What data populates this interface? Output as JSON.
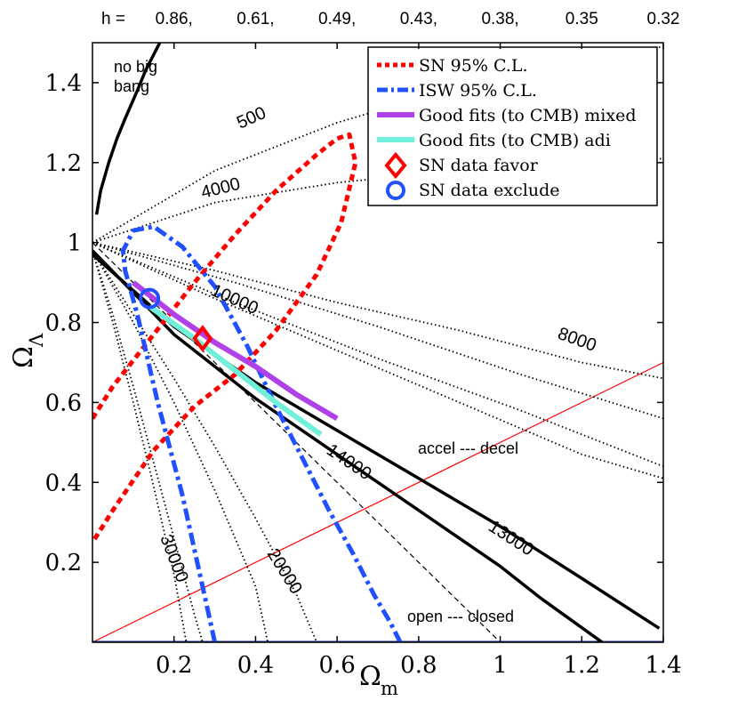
{
  "chart_data": {
    "type": "line",
    "xlabel": "Ω",
    "xlabel_sub": "m",
    "ylabel": "Ω",
    "ylabel_sub": "Λ",
    "xlim": [
      0,
      1.4
    ],
    "ylim": [
      0,
      1.5
    ],
    "xticks": [
      0.2,
      0.4,
      0.6,
      0.8,
      1,
      1.2,
      1.4
    ],
    "xtick_labels": [
      "0.2",
      "0.4",
      "0.6",
      "0.8",
      "1",
      "1.2",
      "1.4"
    ],
    "yticks": [
      0.2,
      0.4,
      0.6,
      0.8,
      1,
      1.2,
      1.4
    ],
    "ytick_labels": [
      "0.2",
      "0.4",
      "0.6",
      "0.8",
      "1",
      "1.2",
      "1.4"
    ],
    "top_axis": {
      "prefix": "h =",
      "labels": [
        "0.86,",
        "0.61,",
        "0.49,",
        "0.43,",
        "0.38,",
        "0.35",
        "0.32"
      ],
      "positions": [
        0.2,
        0.4,
        0.6,
        0.8,
        1.0,
        1.2,
        1.4
      ]
    },
    "legend": [
      {
        "label": "SN 95% C.L.",
        "color": "#ff0000",
        "style": "dotted-thick"
      },
      {
        "label": "ISW 95% C.L.",
        "color": "#2050ff",
        "style": "dashdot-thick"
      },
      {
        "label": "Good fits (to CMB) mixed",
        "color": "#b040e8",
        "style": "solid-thick"
      },
      {
        "label": "Good fits (to CMB) adi",
        "color": "#70f0d8",
        "style": "solid-thick"
      },
      {
        "label": "SN data favor",
        "color": "#ff0000",
        "style": "diamond-marker"
      },
      {
        "label": "SN data exclude",
        "color": "#2050ff",
        "style": "circle-marker"
      }
    ],
    "annotations": {
      "no_big_bang_1": "no big",
      "no_big_bang_2": "bang",
      "accel_decel": "accel --- decel",
      "open_closed": "open --- closed"
    },
    "contour_labels": [
      "500",
      "4000",
      "10000",
      "8000",
      "14000",
      "13000",
      "20000",
      "30000"
    ],
    "series": [
      {
        "name": "no big bang boundary",
        "color": "#000000",
        "style": "solid",
        "x": [
          0.01,
          0.02,
          0.04,
          0.06,
          0.08,
          0.11,
          0.13,
          0.165
        ],
        "y": [
          1.07,
          1.13,
          1.2,
          1.26,
          1.31,
          1.38,
          1.43,
          1.5
        ]
      },
      {
        "name": "accel/decel line",
        "color": "#ff0000",
        "style": "thin",
        "x": [
          0,
          1.4
        ],
        "y": [
          0,
          0.7
        ]
      },
      {
        "name": "flat universe",
        "color": "#000000",
        "style": "dashed",
        "x": [
          0,
          1
        ],
        "y": [
          1,
          0
        ]
      },
      {
        "name": "open/closed axis",
        "color": "#102080",
        "style": "thin",
        "x": [
          0,
          1.4
        ],
        "y": [
          0.002,
          0.002
        ]
      },
      {
        "name": "contour 13000",
        "color": "#000000",
        "style": "solid",
        "x": [
          0,
          0.2,
          0.4,
          0.6,
          0.8,
          1.0,
          1.2,
          1.39
        ],
        "y": [
          0.97,
          0.79,
          0.65,
          0.53,
          0.41,
          0.29,
          0.16,
          0.035
        ]
      },
      {
        "name": "contour 14000",
        "color": "#000000",
        "style": "solid",
        "x": [
          0,
          0.2,
          0.4,
          0.6,
          0.8,
          1.0,
          1.1,
          1.25
        ],
        "y": [
          0.98,
          0.77,
          0.61,
          0.47,
          0.33,
          0.19,
          0.11,
          0.0
        ]
      },
      {
        "name": "contour 8000",
        "color": "#000000",
        "style": "dotted",
        "x": [
          0,
          0.35,
          0.7,
          1.05,
          1.4
        ],
        "y": [
          1.0,
          0.9,
          0.79,
          0.67,
          0.56
        ]
      },
      {
        "name": "contour 8000 lower",
        "color": "#000000",
        "style": "dotted",
        "x": [
          0,
          0.35,
          0.7,
          1.05,
          1.4
        ],
        "y": [
          1.0,
          0.85,
          0.71,
          0.58,
          0.44
        ]
      },
      {
        "name": "contour 500",
        "color": "#000000",
        "style": "dotted",
        "x": [
          0,
          0.3,
          0.6,
          0.9,
          1.2,
          1.4
        ],
        "y": [
          1.0,
          1.18,
          1.3,
          1.39,
          1.46,
          1.49
        ]
      },
      {
        "name": "contour 4000",
        "color": "#000000",
        "style": "dotted",
        "x": [
          0,
          0.3,
          0.6,
          0.9,
          1.2,
          1.4
        ],
        "y": [
          1.0,
          1.1,
          1.15,
          1.18,
          1.2,
          1.21
        ]
      },
      {
        "name": "contour 10000",
        "color": "#000000",
        "style": "dotted",
        "x": [
          0,
          0.3,
          0.6,
          0.9,
          1.2,
          1.4
        ],
        "y": [
          1.0,
          0.86,
          0.73,
          0.6,
          0.47,
          0.41
        ]
      },
      {
        "name": "contour 20000",
        "color": "#000000",
        "style": "dotted",
        "x": [
          0,
          0.1,
          0.2,
          0.3,
          0.4,
          0.5,
          0.55
        ],
        "y": [
          0.98,
          0.82,
          0.66,
          0.49,
          0.31,
          0.12,
          0.0
        ]
      },
      {
        "name": "contour 30000",
        "color": "#000000",
        "style": "dotted",
        "x": [
          0,
          0.05,
          0.1,
          0.15,
          0.2,
          0.25,
          0.27
        ],
        "y": [
          0.98,
          0.82,
          0.64,
          0.45,
          0.26,
          0.07,
          0.0
        ]
      },
      {
        "name": "contour 30000 inner",
        "color": "#000000",
        "style": "dotted",
        "x": [
          0,
          0.05,
          0.1,
          0.15,
          0.2,
          0.23
        ],
        "y": [
          0.98,
          0.8,
          0.6,
          0.39,
          0.17,
          0.0
        ]
      },
      {
        "name": "contour 20000 inner",
        "color": "#000000",
        "style": "dotted",
        "x": [
          0,
          0.1,
          0.2,
          0.3,
          0.4,
          0.43
        ],
        "y": [
          0.98,
          0.8,
          0.6,
          0.38,
          0.14,
          0.0
        ]
      },
      {
        "name": "contour dotted near 10000",
        "color": "#000000",
        "style": "dotted",
        "x": [
          0,
          0.3,
          0.6,
          0.9,
          1.2,
          1.4
        ],
        "y": [
          1.0,
          0.93,
          0.85,
          0.78,
          0.7,
          0.66
        ]
      },
      {
        "name": "SN 95% C.L.",
        "color": "#ff0000",
        "style": "dotted-thick",
        "x": [
          0,
          0.05,
          0.15,
          0.25,
          0.35,
          0.45,
          0.55,
          0.6,
          0.63,
          0.645,
          0.61,
          0.55,
          0.45,
          0.35,
          0.25,
          0.15,
          0.05,
          0.0
        ],
        "y": [
          0.56,
          0.64,
          0.77,
          0.9,
          1.02,
          1.13,
          1.22,
          1.26,
          1.27,
          1.2,
          1.05,
          0.92,
          0.78,
          0.67,
          0.59,
          0.48,
          0.33,
          0.25
        ]
      },
      {
        "name": "ISW 95% C.L.",
        "color": "#2050ff",
        "style": "dashdot-thick",
        "x": [
          0.3,
          0.27,
          0.22,
          0.16,
          0.11,
          0.08,
          0.075,
          0.1,
          0.15,
          0.22,
          0.3,
          0.38,
          0.45,
          0.52,
          0.58,
          0.64,
          0.69,
          0.73,
          0.755
        ],
        "y": [
          0.0,
          0.14,
          0.37,
          0.6,
          0.82,
          0.93,
          0.98,
          1.03,
          1.04,
          0.99,
          0.89,
          0.74,
          0.59,
          0.45,
          0.33,
          0.22,
          0.12,
          0.05,
          0.0
        ]
      },
      {
        "name": "Good fits (to CMB) mixed",
        "color": "#b040e8",
        "style": "solid-thick",
        "x": [
          0.1,
          0.2,
          0.3,
          0.4,
          0.5,
          0.6
        ],
        "y": [
          0.9,
          0.82,
          0.75,
          0.69,
          0.62,
          0.56
        ]
      },
      {
        "name": "Good fits (to CMB) adi",
        "color": "#70f0d8",
        "style": "solid-thick",
        "x": [
          0.14,
          0.25,
          0.35,
          0.45,
          0.56
        ],
        "y": [
          0.84,
          0.76,
          0.68,
          0.6,
          0.52
        ]
      }
    ],
    "markers": [
      {
        "name": "SN data favor",
        "type": "diamond",
        "color": "#ff0000",
        "x": 0.27,
        "y": 0.76
      },
      {
        "name": "SN data exclude",
        "type": "circle",
        "color": "#2050ff",
        "x": 0.14,
        "y": 0.86
      }
    ]
  }
}
